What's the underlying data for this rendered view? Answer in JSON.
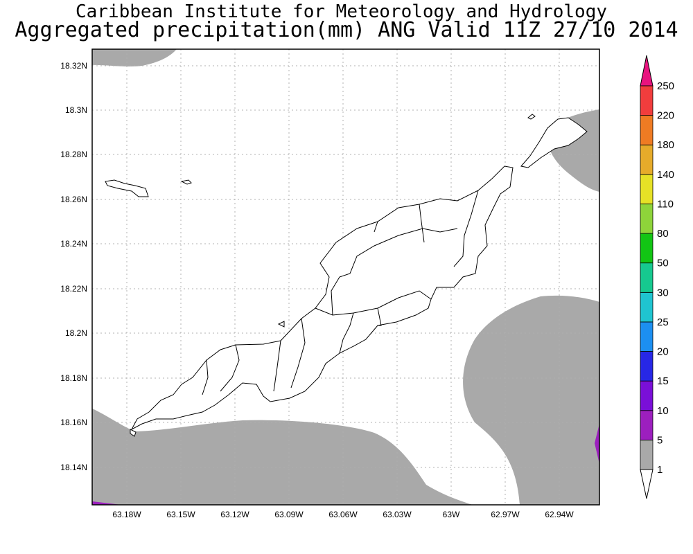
{
  "title": {
    "line1": "Caribbean Institute for Meteorology and Hydrology",
    "line2": "Aggregated precipitation(mm) ANG Valid 11Z 27/10 2014"
  },
  "axes": {
    "lat_labels": [
      "18.32N",
      "18.3N",
      "18.28N",
      "18.26N",
      "18.24N",
      "18.22N",
      "18.2N",
      "18.18N",
      "18.16N",
      "18.14N"
    ],
    "lon_labels": [
      "63.18W",
      "63.15W",
      "63.12W",
      "63.09W",
      "63.06W",
      "63.03W",
      "63W",
      "62.97W",
      "62.94W"
    ]
  },
  "colorbar": {
    "levels": [
      "1",
      "5",
      "10",
      "15",
      "20",
      "25",
      "30",
      "50",
      "80",
      "110",
      "140",
      "180",
      "220",
      "250"
    ],
    "colors": [
      "#a9a9a9",
      "#9c1fbe",
      "#7a0fd8",
      "#2727e6",
      "#1c8ff1",
      "#1fc4d0",
      "#16c98f",
      "#12c514",
      "#8ed43a",
      "#e6e126",
      "#e6ab2a",
      "#ef7b23",
      "#f13d3d",
      "#e8137f"
    ],
    "under_color": "#ffffff"
  },
  "map": {
    "ocean_color": "#ffffff",
    "rain_area_color": "#a9a9a9",
    "heavy_area_color": "#9c1fbe",
    "coast_color": "#000000"
  }
}
